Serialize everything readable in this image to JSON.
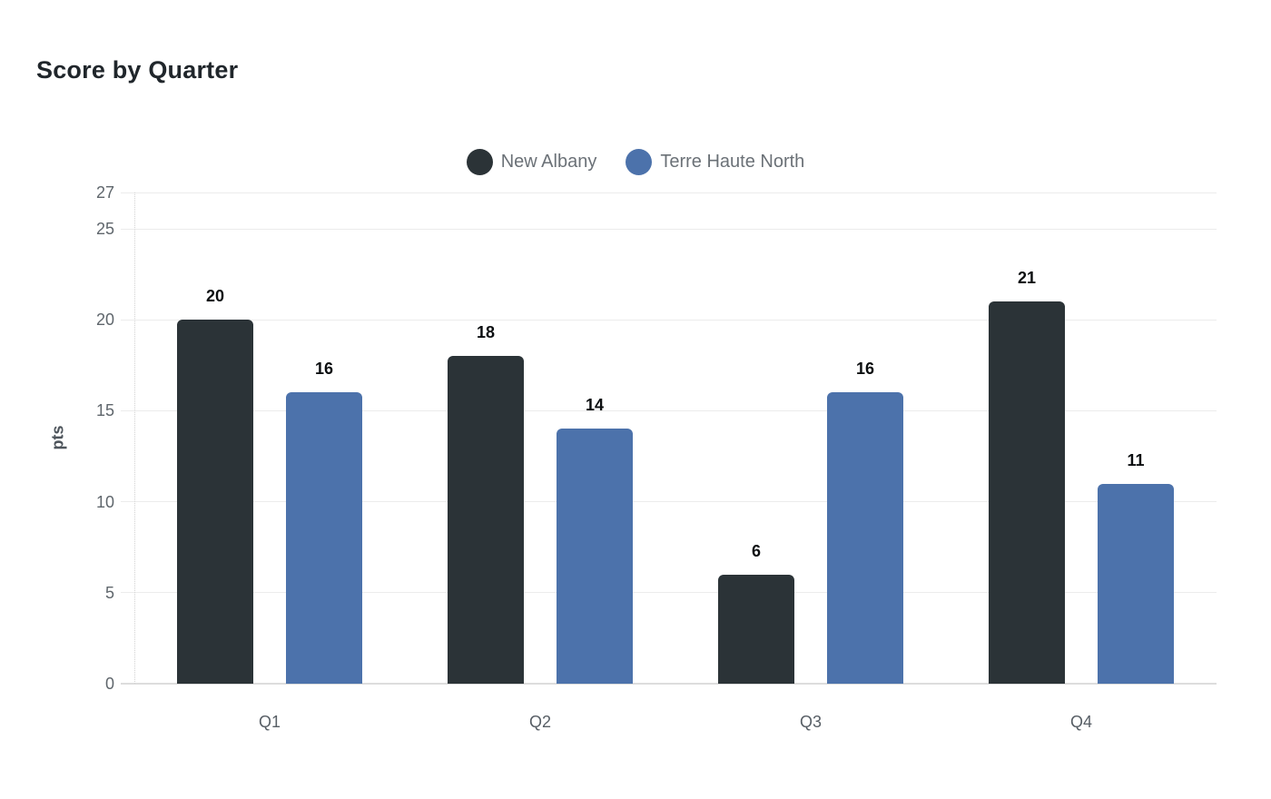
{
  "title": "Score by Quarter",
  "chart_data": {
    "type": "bar",
    "title": "Score by Quarter",
    "categories": [
      "Q1",
      "Q2",
      "Q3",
      "Q4"
    ],
    "series": [
      {
        "name": "New Albany",
        "color": "#2b3337",
        "values": [
          20,
          18,
          6,
          21
        ]
      },
      {
        "name": "Terre Haute North",
        "color": "#4c72ab",
        "values": [
          16,
          14,
          16,
          11
        ]
      }
    ],
    "xlabel": "",
    "ylabel": "pts",
    "yticks": [
      0,
      5,
      10,
      15,
      20,
      25,
      27
    ],
    "ylim": [
      0,
      27
    ],
    "grid": true,
    "legend_position": "top-center",
    "value_labels": true
  }
}
